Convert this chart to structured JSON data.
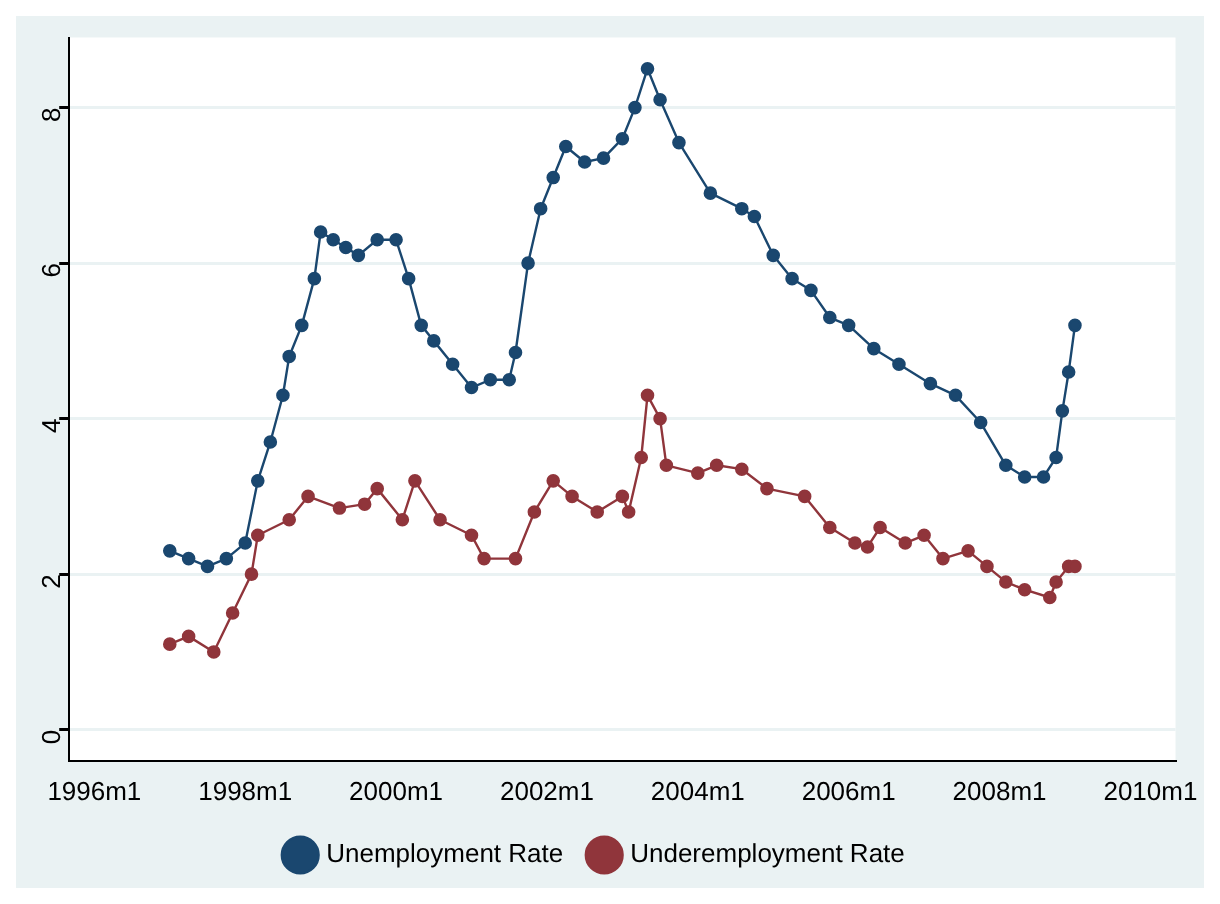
{
  "chart_data": {
    "type": "line",
    "series": [
      {
        "name": "Unemployment Rate",
        "color": "#1a476f",
        "x": [
          "1997-01",
          "1997-04",
          "1997-07",
          "1997-10",
          "1998-01",
          "1998-03",
          "1998-05",
          "1998-07",
          "1998-08",
          "1998-10",
          "1998-12",
          "1999-01",
          "1999-03",
          "1999-05",
          "1999-07",
          "1999-10",
          "2000-01",
          "2000-03",
          "2000-05",
          "2000-07",
          "2000-10",
          "2001-01",
          "2001-04",
          "2001-07",
          "2001-08",
          "2001-10",
          "2001-12",
          "2002-02",
          "2002-04",
          "2002-07",
          "2002-10",
          "2003-01",
          "2003-03",
          "2003-05",
          "2003-07",
          "2003-10",
          "2004-03",
          "2004-08",
          "2004-10",
          "2005-01",
          "2005-04",
          "2005-07",
          "2005-10",
          "2006-01",
          "2006-05",
          "2006-09",
          "2007-02",
          "2007-06",
          "2007-10",
          "2008-02",
          "2008-05",
          "2008-08",
          "2008-10",
          "2008-11",
          "2008-12",
          "2009-01"
        ],
        "values": [
          2.3,
          2.2,
          2.1,
          2.2,
          2.4,
          3.2,
          3.7,
          4.3,
          4.8,
          5.2,
          5.8,
          6.4,
          6.3,
          6.2,
          6.1,
          6.3,
          6.3,
          5.8,
          5.2,
          5.0,
          4.7,
          4.4,
          4.5,
          4.5,
          4.85,
          6.0,
          6.7,
          7.1,
          7.5,
          7.3,
          7.35,
          7.6,
          8.0,
          8.5,
          8.1,
          7.55,
          6.9,
          6.7,
          6.6,
          6.1,
          5.8,
          5.65,
          5.3,
          5.2,
          4.9,
          4.7,
          4.45,
          4.3,
          3.95,
          3.4,
          3.25,
          3.25,
          3.5,
          4.1,
          4.6,
          5.2
        ]
      },
      {
        "name": "Underemployment Rate",
        "color": "#90353b",
        "x": [
          "1997-01",
          "1997-04",
          "1997-08",
          "1997-11",
          "1998-02",
          "1998-03",
          "1998-08",
          "1998-11",
          "1999-04",
          "1999-08",
          "1999-10",
          "2000-02",
          "2000-04",
          "2000-08",
          "2001-01",
          "2001-03",
          "2001-08",
          "2001-11",
          "2002-02",
          "2002-05",
          "2002-09",
          "2003-01",
          "2003-02",
          "2003-04",
          "2003-05",
          "2003-07",
          "2003-08",
          "2004-01",
          "2004-04",
          "2004-08",
          "2004-12",
          "2005-06",
          "2005-10",
          "2006-02",
          "2006-04",
          "2006-06",
          "2006-10",
          "2007-01",
          "2007-04",
          "2007-08",
          "2007-11",
          "2008-02",
          "2008-05",
          "2008-09",
          "2008-10",
          "2008-12",
          "2009-01"
        ],
        "values": [
          1.1,
          1.2,
          1.0,
          1.5,
          2.0,
          2.5,
          2.7,
          3.0,
          2.85,
          2.9,
          3.1,
          2.7,
          3.2,
          2.7,
          2.5,
          2.2,
          2.2,
          2.8,
          3.2,
          3.0,
          2.8,
          3.0,
          2.8,
          3.5,
          4.3,
          4.0,
          3.4,
          3.3,
          3.4,
          3.35,
          3.1,
          3.0,
          2.6,
          2.4,
          2.35,
          2.6,
          2.4,
          2.5,
          2.2,
          2.3,
          2.1,
          1.9,
          1.8,
          1.7,
          1.9,
          2.1,
          2.1
        ]
      }
    ],
    "xlim": [
      "1995-09",
      "2010-05"
    ],
    "xticks": [
      {
        "value": "1996-01",
        "label": "1996m1"
      },
      {
        "value": "1998-01",
        "label": "1998m1"
      },
      {
        "value": "2000-01",
        "label": "2000m1"
      },
      {
        "value": "2002-01",
        "label": "2002m1"
      },
      {
        "value": "2004-01",
        "label": "2004m1"
      },
      {
        "value": "2006-01",
        "label": "2006m1"
      },
      {
        "value": "2008-01",
        "label": "2008m1"
      },
      {
        "value": "2010-01",
        "label": "2010m1"
      }
    ],
    "ylim": [
      -0.4,
      8.9
    ],
    "yticks": [
      0,
      2,
      4,
      6,
      8
    ],
    "grid": "y",
    "legend": "bottom",
    "marker": "circle",
    "line_style": "solid"
  }
}
